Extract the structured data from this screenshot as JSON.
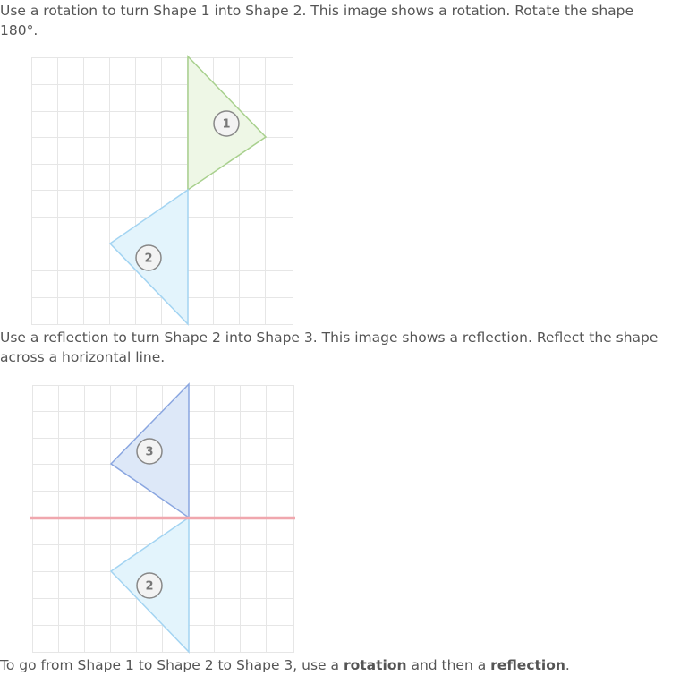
{
  "rotation_section": {
    "instruction": "Use a rotation to turn Shape 1 into Shape 2. This image shows a rotation. Rotate the shape 180°."
  },
  "reflection_section": {
    "instruction": "Use a reflection to turn Shape 2 into Shape 3. This image shows a reflection. Reflect the shape across a horizontal line."
  },
  "summary": {
    "prefix": "To go from Shape 1 to Shape 2 to Shape 3, use a ",
    "term1": "rotation",
    "middle": " and then a ",
    "term2": "reflection",
    "suffix": "."
  },
  "shapes": {
    "shape1_label": "1",
    "shape2_label": "2",
    "shape3_label": "3",
    "shape2_copy_label": "2"
  },
  "colors": {
    "grid": "#e6e6e6",
    "shape1_stroke": "#a8d08d",
    "shape1_fill": "#eef7e6",
    "shape2_stroke": "#a3d4f2",
    "shape2_fill": "#e3f4fc",
    "shape3_stroke": "#8aa6e0",
    "shape3_fill": "#dde8f8",
    "reflection_line": "#f0a7ae"
  }
}
